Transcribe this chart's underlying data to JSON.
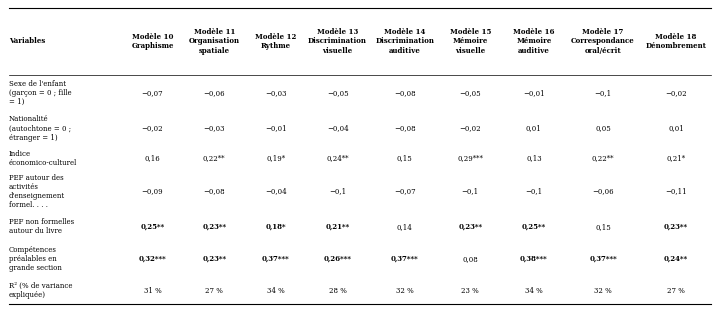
{
  "col_headers": [
    [
      "Variables",
      "",
      ""
    ],
    [
      "Modèle 10\nGraphisme",
      "",
      ""
    ],
    [
      "Modèle 11\nOrganisation\nspatiale",
      "",
      ""
    ],
    [
      "Modèle 12\nRythme",
      "",
      ""
    ],
    [
      "Modèle 13\nDiscrimination\nvisuelle",
      "",
      ""
    ],
    [
      "Modèle 14\nDiscrimination\nauditive",
      "",
      ""
    ],
    [
      "Modèle 15\nMémoire\nvisuelle",
      "",
      ""
    ],
    [
      "Modèle 16\nMémoire\nauditive",
      "",
      ""
    ],
    [
      "Modèle 17\nCorrespondance\noral/écrit",
      "",
      ""
    ],
    [
      "Modèle 18\nDénombrement",
      "",
      ""
    ]
  ],
  "col_labels": [
    "Variables",
    "Modèle 10\nGraphisme",
    "Modèle 11\nOrganisation\nspatiale",
    "Modèle 12\nRythme",
    "Modèle 13\nDiscrimination\nvisuelle",
    "Modèle 14\nDiscrimination\nauditive",
    "Modèle 15\nMémoire\nvisuelle",
    "Modèle 16\nMémoire\nauditive",
    "Modèle 17\nCorrespondance\noral/écrit",
    "Modèle 18\nDénombrement"
  ],
  "rows": [
    {
      "label": "Sexe de l'enfant\n(garçon = 0 ; fille\n= 1)",
      "values": [
        "−0,07",
        "−0,06",
        "−0,03",
        "−0,05",
        "−0,08",
        "−0,05",
        "−0,01",
        "−0,1",
        "−0,02"
      ],
      "bold": [
        false,
        false,
        false,
        false,
        false,
        false,
        false,
        false,
        false
      ]
    },
    {
      "label": "Nationalité\n(autochtone = 0 ;\nétranger = 1)",
      "values": [
        "−0,02",
        "−0,03",
        "−0,01",
        "−0,04",
        "−0,08",
        "−0,02",
        "0,01",
        "0,05",
        "0,01"
      ],
      "bold": [
        false,
        false,
        false,
        false,
        false,
        false,
        false,
        false,
        false
      ]
    },
    {
      "label": "Indice\néconomico-culturel",
      "values": [
        "0,16",
        "0,22**",
        "0,19*",
        "0,24**",
        "0,15",
        "0,29***",
        "0,13",
        "0,22**",
        "0,21*"
      ],
      "bold": [
        false,
        false,
        false,
        false,
        false,
        false,
        false,
        false,
        false
      ]
    },
    {
      "label": "PEF autour des\nactivités\nd'enseignement\nformel. . . .",
      "values": [
        "−0,09",
        "−0,08",
        "−0,04",
        "−0,1",
        "−0,07",
        "−0,1",
        "−0,1",
        "−0,06",
        "−0,11"
      ],
      "bold": [
        false,
        false,
        false,
        false,
        false,
        false,
        false,
        false,
        false
      ]
    },
    {
      "label": "PEF non formelles\nautour du livre",
      "values": [
        "0,25**",
        "0,23**",
        "0,18*",
        "0,21**",
        "0,14",
        "0,23**",
        "0,25**",
        "0,15",
        "0,23**"
      ],
      "bold": [
        true,
        true,
        true,
        true,
        false,
        true,
        true,
        false,
        true
      ]
    },
    {
      "label": "Compétences\npréalables en\ngrande section",
      "values": [
        "0,32***",
        "0,23**",
        "0,37***",
        "0,26***",
        "0,37***",
        "0,08",
        "0,38***",
        "0,37***",
        "0,24**"
      ],
      "bold": [
        true,
        true,
        true,
        true,
        true,
        false,
        true,
        true,
        true
      ]
    },
    {
      "label": "R² (% de variance\nexpliquée)",
      "values": [
        "31 %",
        "27 %",
        "34 %",
        "28 %",
        "32 %",
        "23 %",
        "34 %",
        "32 %",
        "27 %"
      ],
      "bold": [
        false,
        false,
        false,
        false,
        false,
        false,
        false,
        false,
        false
      ]
    }
  ]
}
